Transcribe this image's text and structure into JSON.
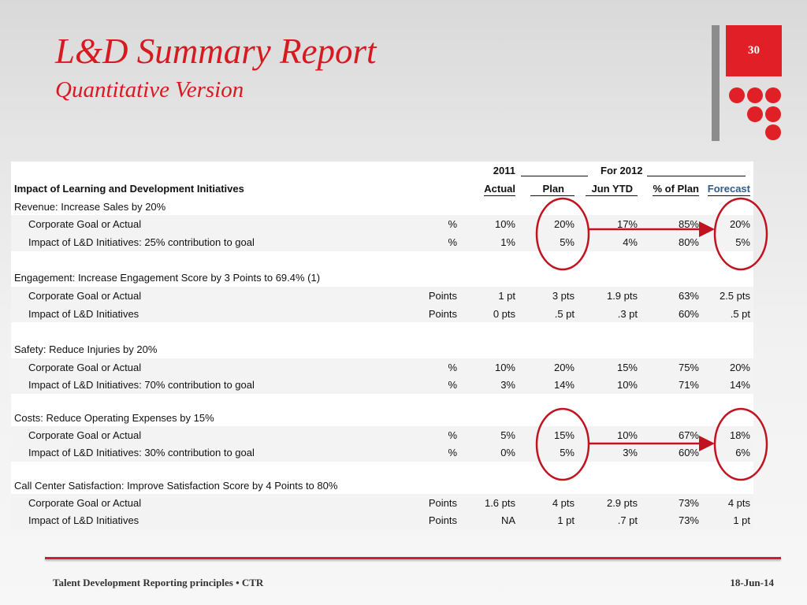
{
  "slide": {
    "title": "L&D Summary Report",
    "subtitle": "Quantitative Version",
    "page_number": "30",
    "accent_color": "#e01f26"
  },
  "table": {
    "header": {
      "year_label": "2011",
      "group_label": "For 2012",
      "row_title": "Impact of Learning and Development Initiatives",
      "col_actual": "Actual",
      "col_plan": "Plan",
      "col_ytd": "Jun YTD",
      "col_pct_plan": "% of Plan",
      "col_forecast": "Forecast"
    },
    "sections": [
      {
        "title": "Revenue: Increase Sales by 20%",
        "rows": [
          {
            "label": "Corporate Goal or Actual",
            "unit": "%",
            "actual": "10%",
            "plan": "20%",
            "ytd": "17%",
            "pct_plan": "85%",
            "forecast": "20%"
          },
          {
            "label": "Impact of L&D Initiatives: 25% contribution to goal",
            "unit": "%",
            "actual": "1%",
            "plan": "5%",
            "ytd": "4%",
            "pct_plan": "80%",
            "forecast": "5%"
          }
        ]
      },
      {
        "title": "Engagement: Increase Engagement Score by 3 Points to 69.4% (1)",
        "rows": [
          {
            "label": "Corporate Goal or Actual",
            "unit": "Points",
            "actual": "1 pt",
            "plan": "3 pts",
            "ytd": "1.9 pts",
            "pct_plan": "63%",
            "forecast": "2.5 pts"
          },
          {
            "label": "Impact of L&D Initiatives",
            "unit": "Points",
            "actual": "0 pts",
            "plan": ".5 pt",
            "ytd": ".3 pt",
            "pct_plan": "60%",
            "forecast": ".5 pt"
          }
        ]
      },
      {
        "title": "Safety: Reduce Injuries by 20%",
        "rows": [
          {
            "label": "Corporate Goal or Actual",
            "unit": "%",
            "actual": "10%",
            "plan": "20%",
            "ytd": "15%",
            "pct_plan": "75%",
            "forecast": "20%"
          },
          {
            "label": "Impact of L&D Initiatives: 70% contribution to goal",
            "unit": "%",
            "actual": "3%",
            "plan": "14%",
            "ytd": "10%",
            "pct_plan": "71%",
            "forecast": "14%"
          }
        ]
      },
      {
        "title": "Costs: Reduce Operating Expenses by 15%",
        "rows": [
          {
            "label": "Corporate Goal or Actual",
            "unit": "%",
            "actual": "5%",
            "plan": "15%",
            "ytd": "10%",
            "pct_plan": "67%",
            "forecast": "18%"
          },
          {
            "label": "Impact of L&D Initiatives: 30% contribution to goal",
            "unit": "%",
            "actual": "0%",
            "plan": "5%",
            "ytd": "3%",
            "pct_plan": "60%",
            "forecast": "6%"
          }
        ]
      },
      {
        "title": "Call Center Satisfaction: Improve Satisfaction Score by 4 Points to 80%",
        "rows": [
          {
            "label": "Corporate Goal or Actual",
            "unit": "Points",
            "actual": "1.6 pts",
            "plan": "4 pts",
            "ytd": "2.9 pts",
            "pct_plan": "73%",
            "forecast": "4 pts"
          },
          {
            "label": "Impact of L&D Initiatives",
            "unit": "Points",
            "actual": "NA",
            "plan": "1 pt",
            "ytd": ".7 pt",
            "pct_plan": "73%",
            "forecast": "1 pt"
          }
        ]
      }
    ]
  },
  "footer": {
    "left": "Talent Development Reporting principles  •  CTR",
    "right": "18-Jun-14"
  }
}
